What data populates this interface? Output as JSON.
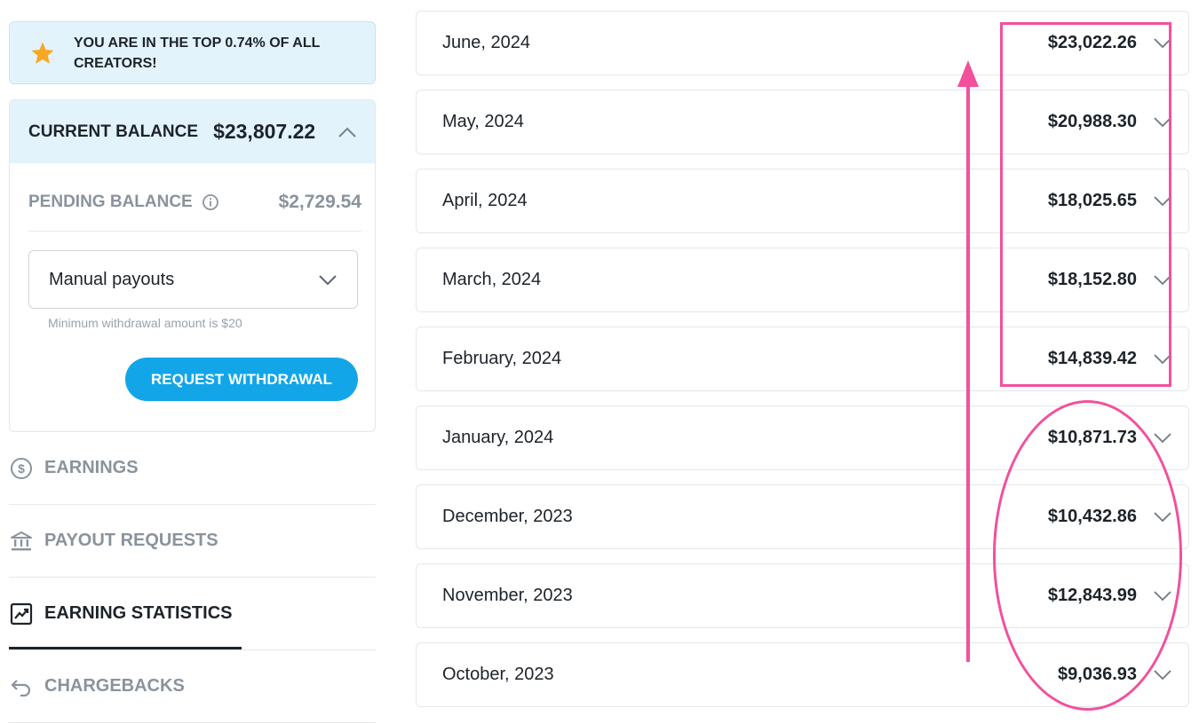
{
  "banner": {
    "text": "YOU ARE IN THE TOP 0.74% OF ALL CREATORS!",
    "icon": "star-icon"
  },
  "balance": {
    "current_label": "CURRENT BALANCE",
    "current_amount": "$23,807.22",
    "pending_label": "PENDING BALANCE",
    "pending_amount": "$2,729.54",
    "payout_mode": "Manual payouts",
    "min_note": "Minimum withdrawal amount is $20",
    "withdraw_button": "REQUEST WITHDRAWAL"
  },
  "nav": {
    "earnings": "EARNINGS",
    "payout_requests": "PAYOUT REQUESTS",
    "earning_statistics": "EARNING STATISTICS",
    "chargebacks": "CHARGEBACKS",
    "active": "earning_statistics"
  },
  "months": [
    {
      "month": "June, 2024",
      "amount": "$23,022.26"
    },
    {
      "month": "May, 2024",
      "amount": "$20,988.30"
    },
    {
      "month": "April, 2024",
      "amount": "$18,025.65"
    },
    {
      "month": "March, 2024",
      "amount": "$18,152.80"
    },
    {
      "month": "February, 2024",
      "amount": "$14,839.42"
    },
    {
      "month": "January, 2024",
      "amount": "$10,871.73"
    },
    {
      "month": "December, 2023",
      "amount": "$10,432.86"
    },
    {
      "month": "November, 2023",
      "amount": "$12,843.99"
    },
    {
      "month": "October, 2023",
      "amount": "$9,036.93"
    }
  ],
  "colors": {
    "accent": "#12a6e8",
    "banner_bg": "#e3f3fc",
    "annotation": "#f2509c",
    "muted_text": "#8a939c",
    "star": "#f7a823"
  }
}
